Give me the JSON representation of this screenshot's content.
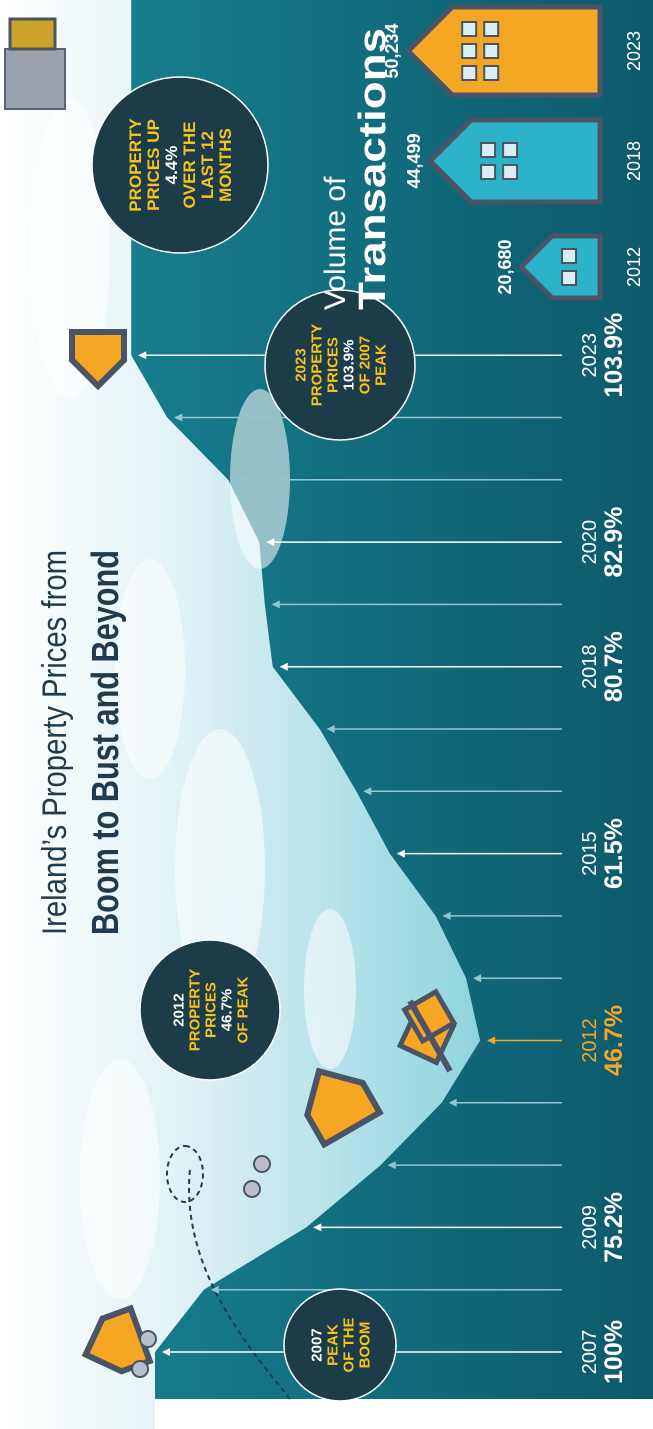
{
  "chart_data": [
    {
      "type": "area",
      "title_lines": [
        "Ireland’s Property Prices from",
        "Boom to Bust and Beyond"
      ],
      "categories": [
        "2007",
        null,
        "2009",
        null,
        null,
        "2012",
        null,
        null,
        "2015",
        null,
        null,
        "2018",
        null,
        "2020",
        null,
        null,
        "2023"
      ],
      "values": [
        100,
        92,
        75.2,
        63,
        53,
        46.7,
        49,
        54,
        61.5,
        67,
        73,
        80.7,
        82,
        82.9,
        88,
        98,
        103.9
      ],
      "value_labels": [
        "100%",
        null,
        "75.2%",
        null,
        null,
        "46.7%",
        null,
        null,
        "61.5%",
        null,
        null,
        "80.7%",
        null,
        "82.9%",
        null,
        null,
        "103.9%"
      ],
      "point_colors": [
        "#ffffff",
        "#93c6d0",
        "#ffffff",
        "#93c6d0",
        "#93c6d0",
        "#f5a623",
        "#93c6d0",
        "#93c6d0",
        "#ffffff",
        "#93c6d0",
        "#93c6d0",
        "#ffffff",
        "#93c6d0",
        "#ffffff",
        "#93c6d0",
        "#93c6d0",
        "#ffffff"
      ],
      "ylim": [
        40,
        110
      ],
      "annotations": [
        {
          "lines": [
            {
              "text": "2007",
              "color": "#ffffff"
            },
            {
              "text": "PEAK",
              "color": "#f7c21b"
            },
            {
              "text": "OF THE",
              "color": "#f7c21b"
            },
            {
              "text": "BOOM",
              "color": "#f7c21b"
            }
          ]
        },
        {
          "lines": [
            {
              "text": "2012",
              "color": "#ffffff"
            },
            {
              "text": "PROPERTY",
              "color": "#f7c21b"
            },
            {
              "text": "PRICES",
              "color": "#f7c21b"
            },
            {
              "text": "46.7%",
              "color": "#ffffff"
            },
            {
              "text": "OF PEAK",
              "color": "#f7c21b"
            }
          ]
        },
        {
          "lines": [
            {
              "text": "2023",
              "color": "#f7c21b"
            },
            {
              "text": "PROPERTY",
              "color": "#f7c21b"
            },
            {
              "text": "PRICES",
              "color": "#f7c21b"
            },
            {
              "text": "103.9%",
              "color": "#ffffff"
            },
            {
              "text": "OF 2007",
              "color": "#f7c21b"
            },
            {
              "text": "PEAK",
              "color": "#f7c21b"
            }
          ]
        },
        {
          "lines": [
            {
              "text": "PROPERTY",
              "color": "#f7c21b"
            },
            {
              "text": "PRICES UP",
              "color": "#f7c21b"
            },
            {
              "text": "4.4%",
              "color": "#ffffff"
            },
            {
              "text": "OVER THE",
              "color": "#f7c21b"
            },
            {
              "text": "LAST 12",
              "color": "#f7c21b"
            },
            {
              "text": "MONTHS",
              "color": "#f7c21b"
            }
          ]
        }
      ]
    },
    {
      "type": "bar",
      "title_lines": [
        "Volume of",
        "Transactions"
      ],
      "categories": [
        "2012",
        "2018",
        "2023"
      ],
      "values": [
        20680,
        44499,
        50234
      ],
      "value_labels": [
        "20,680",
        "44,499",
        "50,234"
      ],
      "colors": [
        "#2db3c8",
        "#2db3c8",
        "#f5a623"
      ],
      "ylim": [
        0,
        55000
      ]
    }
  ]
}
